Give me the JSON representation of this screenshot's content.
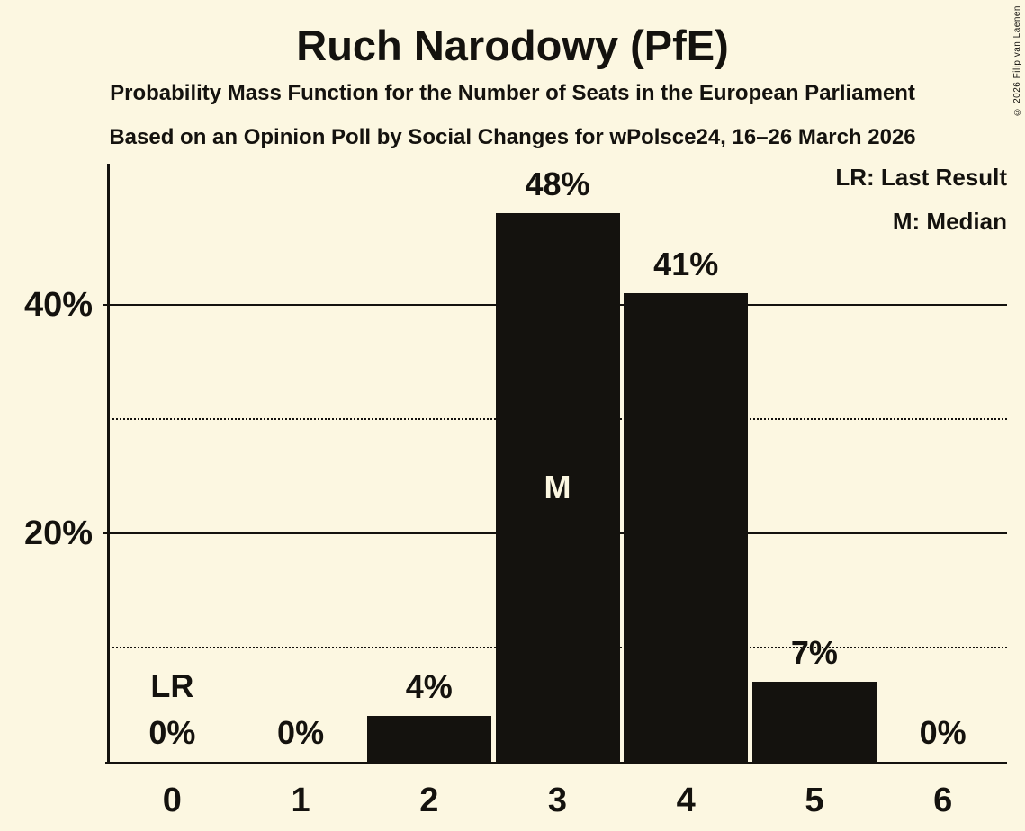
{
  "title": "Ruch Narodowy (PfE)",
  "subtitle1": "Probability Mass Function for the Number of Seats in the European Parliament",
  "subtitle2": "Based on an Opinion Poll by Social Changes for wPolsce24, 16–26 March 2026",
  "copyright": "© 2026 Filip van Laenen",
  "legend": {
    "lr": "LR: Last Result",
    "m": "M: Median",
    "position": "top-right"
  },
  "colors": {
    "background": "#FCF7E1",
    "ink": "#14120E",
    "bar": "#14120E",
    "bar_annotation": "#FCF7E1"
  },
  "chart_data": {
    "type": "bar",
    "title": "Ruch Narodowy (PfE)",
    "categories": [
      "0",
      "1",
      "2",
      "3",
      "4",
      "5",
      "6"
    ],
    "values": [
      0,
      0,
      4,
      48,
      41,
      7,
      0
    ],
    "value_labels": [
      "0%",
      "0%",
      "4%",
      "48%",
      "41%",
      "7%",
      "0%"
    ],
    "xlabel": "",
    "ylabel": "",
    "ylim": [
      0,
      52
    ],
    "grid": "horizontal",
    "yticks": [
      {
        "pct": 10,
        "style": "dotted",
        "label": ""
      },
      {
        "pct": 20,
        "style": "solid",
        "label": "20%"
      },
      {
        "pct": 30,
        "style": "dotted",
        "label": ""
      },
      {
        "pct": 40,
        "style": "solid",
        "label": "40%"
      }
    ],
    "annotations": [
      {
        "category": "0",
        "index": 0,
        "text": "LR",
        "meaning": "Last Result",
        "placement": "above-value-label"
      },
      {
        "category": "3",
        "index": 3,
        "text": "M",
        "meaning": "Median",
        "placement": "inside-bar"
      }
    ]
  }
}
